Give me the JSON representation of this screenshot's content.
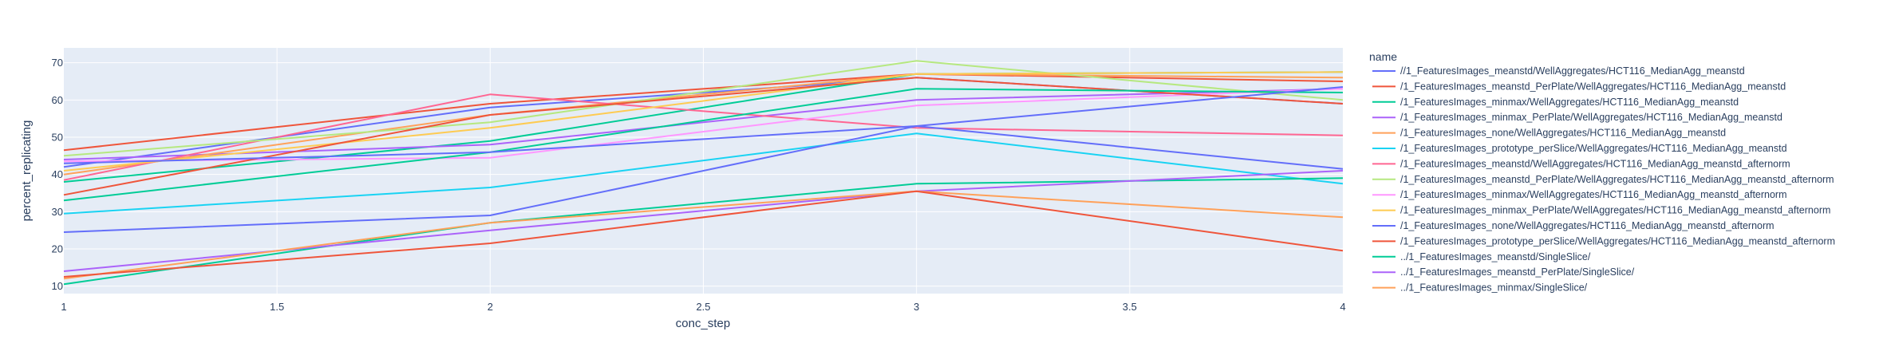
{
  "chart_data": {
    "type": "line",
    "xlabel": "conc_step",
    "ylabel": "percent_replicating",
    "xlim": [
      1,
      4
    ],
    "ylim": [
      8,
      74
    ],
    "x_ticks": [
      "1",
      "1.5",
      "2",
      "2.5",
      "3",
      "3.5",
      "4"
    ],
    "y_ticks": [
      "10",
      "20",
      "30",
      "40",
      "50",
      "60",
      "70"
    ],
    "grid": true,
    "legend_title": "name",
    "legend_position": "right",
    "x": [
      1,
      2,
      3,
      4
    ],
    "series": [
      {
        "name": "//1_FeaturesImages_meanstd/WellAggregates/HCT116_MedianAgg_meanstd",
        "color": "#636efa",
        "values": [
          42,
          58,
          66,
          59
        ]
      },
      {
        "name": "/1_FeaturesImages_meanstd_PerPlate/WellAggregates/HCT116_MedianAgg_meanstd",
        "color": "#EF553B",
        "values": [
          46.5,
          59,
          67,
          65
        ]
      },
      {
        "name": "/1_FeaturesImages_minmax/WellAggregates/HCT116_MedianAgg_meanstd",
        "color": "#00cc96",
        "values": [
          38,
          49,
          67,
          67.5
        ]
      },
      {
        "name": "/1_FeaturesImages_minmax_PerPlate/WellAggregates/HCT116_MedianAgg_meanstd",
        "color": "#ab63fa",
        "values": [
          44,
          48,
          60,
          63
        ]
      },
      {
        "name": "/1_FeaturesImages_none/WellAggregates/HCT116_MedianAgg_meanstd",
        "color": "#FFA15A",
        "values": [
          40,
          56,
          67,
          66
        ]
      },
      {
        "name": "/1_FeaturesImages_prototype_perSlice/WellAggregates/HCT116_MedianAgg_meanstd",
        "color": "#19d3f3",
        "values": [
          29.5,
          36.5,
          51,
          37.5
        ]
      },
      {
        "name": "/1_FeaturesImages_meanstd/WellAggregates/HCT116_MedianAgg_meanstd_afternorm",
        "color": "#FF6692",
        "values": [
          38.5,
          61.5,
          52.5,
          50.5
        ]
      },
      {
        "name": "/1_FeaturesImages_meanstd_PerPlate/WellAggregates/HCT116_MedianAgg_meanstd_afternorm",
        "color": "#B6E880",
        "values": [
          45,
          54,
          70.5,
          60
        ]
      },
      {
        "name": "/1_FeaturesImages_minmax/WellAggregates/HCT116_MedianAgg_meanstd_afternorm",
        "color": "#FF97FF",
        "values": [
          43.5,
          44.5,
          58.5,
          63
        ]
      },
      {
        "name": "/1_FeaturesImages_minmax_PerPlate/WellAggregates/HCT116_MedianAgg_meanstd_afternorm",
        "color": "#FECB52",
        "values": [
          41,
          52.5,
          67,
          67.5
        ]
      },
      {
        "name": "/1_FeaturesImages_none/WellAggregates/HCT116_MedianAgg_meanstd_afternorm",
        "color": "#636efa",
        "values": [
          24.5,
          29,
          53,
          41.5
        ]
      },
      {
        "name": "/1_FeaturesImages_prototype_perSlice/WellAggregates/HCT116_MedianAgg_meanstd_afternorm",
        "color": "#EF553B",
        "values": [
          34.5,
          56,
          66,
          59
        ]
      },
      {
        "name": "../1_FeaturesImages_meanstd/SingleSlice/",
        "color": "#00cc96",
        "values": [
          10.5,
          27,
          37.5,
          39
        ]
      },
      {
        "name": "../1_FeaturesImages_meanstd_PerPlate/SingleSlice/",
        "color": "#ab63fa",
        "values": [
          14,
          25,
          35.5,
          41
        ]
      },
      {
        "name": "../1_FeaturesImages_minmax/SingleSlice/",
        "color": "#FFA15A",
        "values": [
          12,
          27,
          35.5,
          28.5
        ]
      },
      {
        "name": "",
        "color": "#EF553B",
        "values": [
          12.5,
          21.5,
          35.5,
          19.5
        ]
      },
      {
        "name": "",
        "color": "#00cc96",
        "values": [
          33,
          46,
          63,
          62
        ]
      },
      {
        "name": "",
        "color": "#636efa",
        "values": [
          43,
          46,
          53,
          63.5
        ]
      }
    ]
  }
}
